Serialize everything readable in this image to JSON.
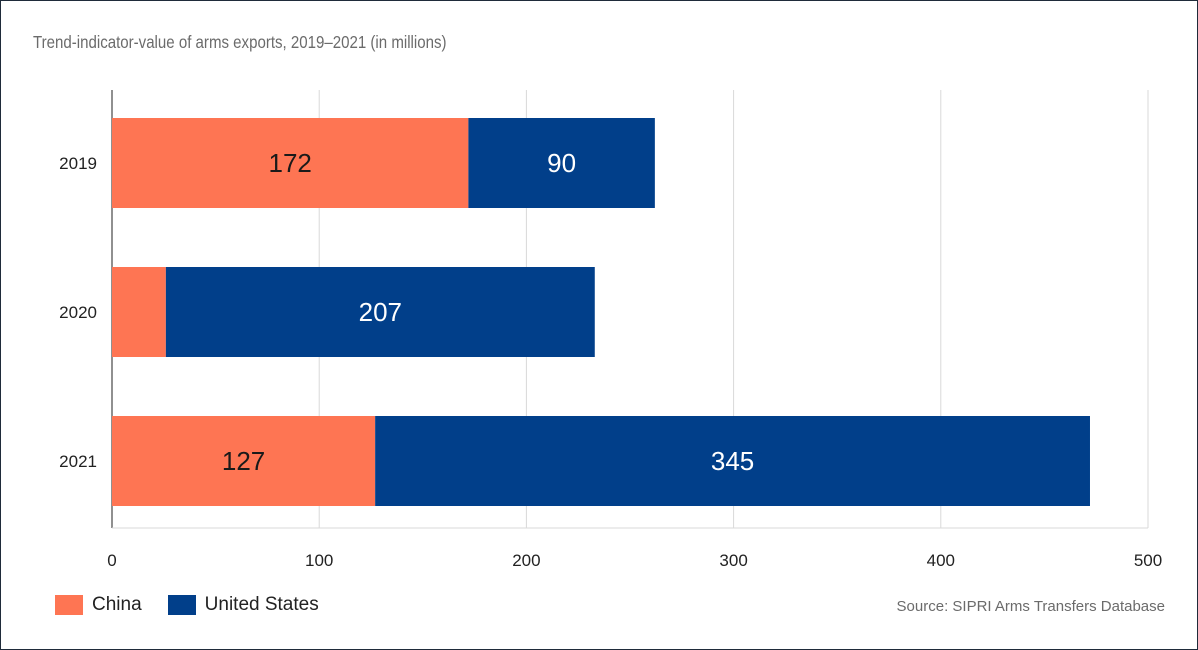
{
  "title": "Trend-indicator-value of arms exports, 2019–2021 (in millions)",
  "source": "Source: SIPRI Arms Transfers Database",
  "colors": {
    "china": "#fe7553",
    "united_states": "#013f8a",
    "grid": "#d9d9d9",
    "axis": "#222222"
  },
  "chart_data": {
    "type": "bar",
    "orientation": "horizontal",
    "stacked": true,
    "categories": [
      "2019",
      "2020",
      "2021"
    ],
    "series": [
      {
        "name": "China",
        "values": [
          172,
          26,
          127
        ],
        "labels": [
          "172",
          "",
          "127"
        ]
      },
      {
        "name": "United States",
        "values": [
          90,
          207,
          345
        ],
        "labels": [
          "90",
          "207",
          "345"
        ]
      }
    ],
    "xlim": [
      0,
      500
    ],
    "xticks": [
      0,
      100,
      200,
      300,
      400,
      500
    ],
    "grid": true,
    "legend_position": "bottom-left"
  }
}
